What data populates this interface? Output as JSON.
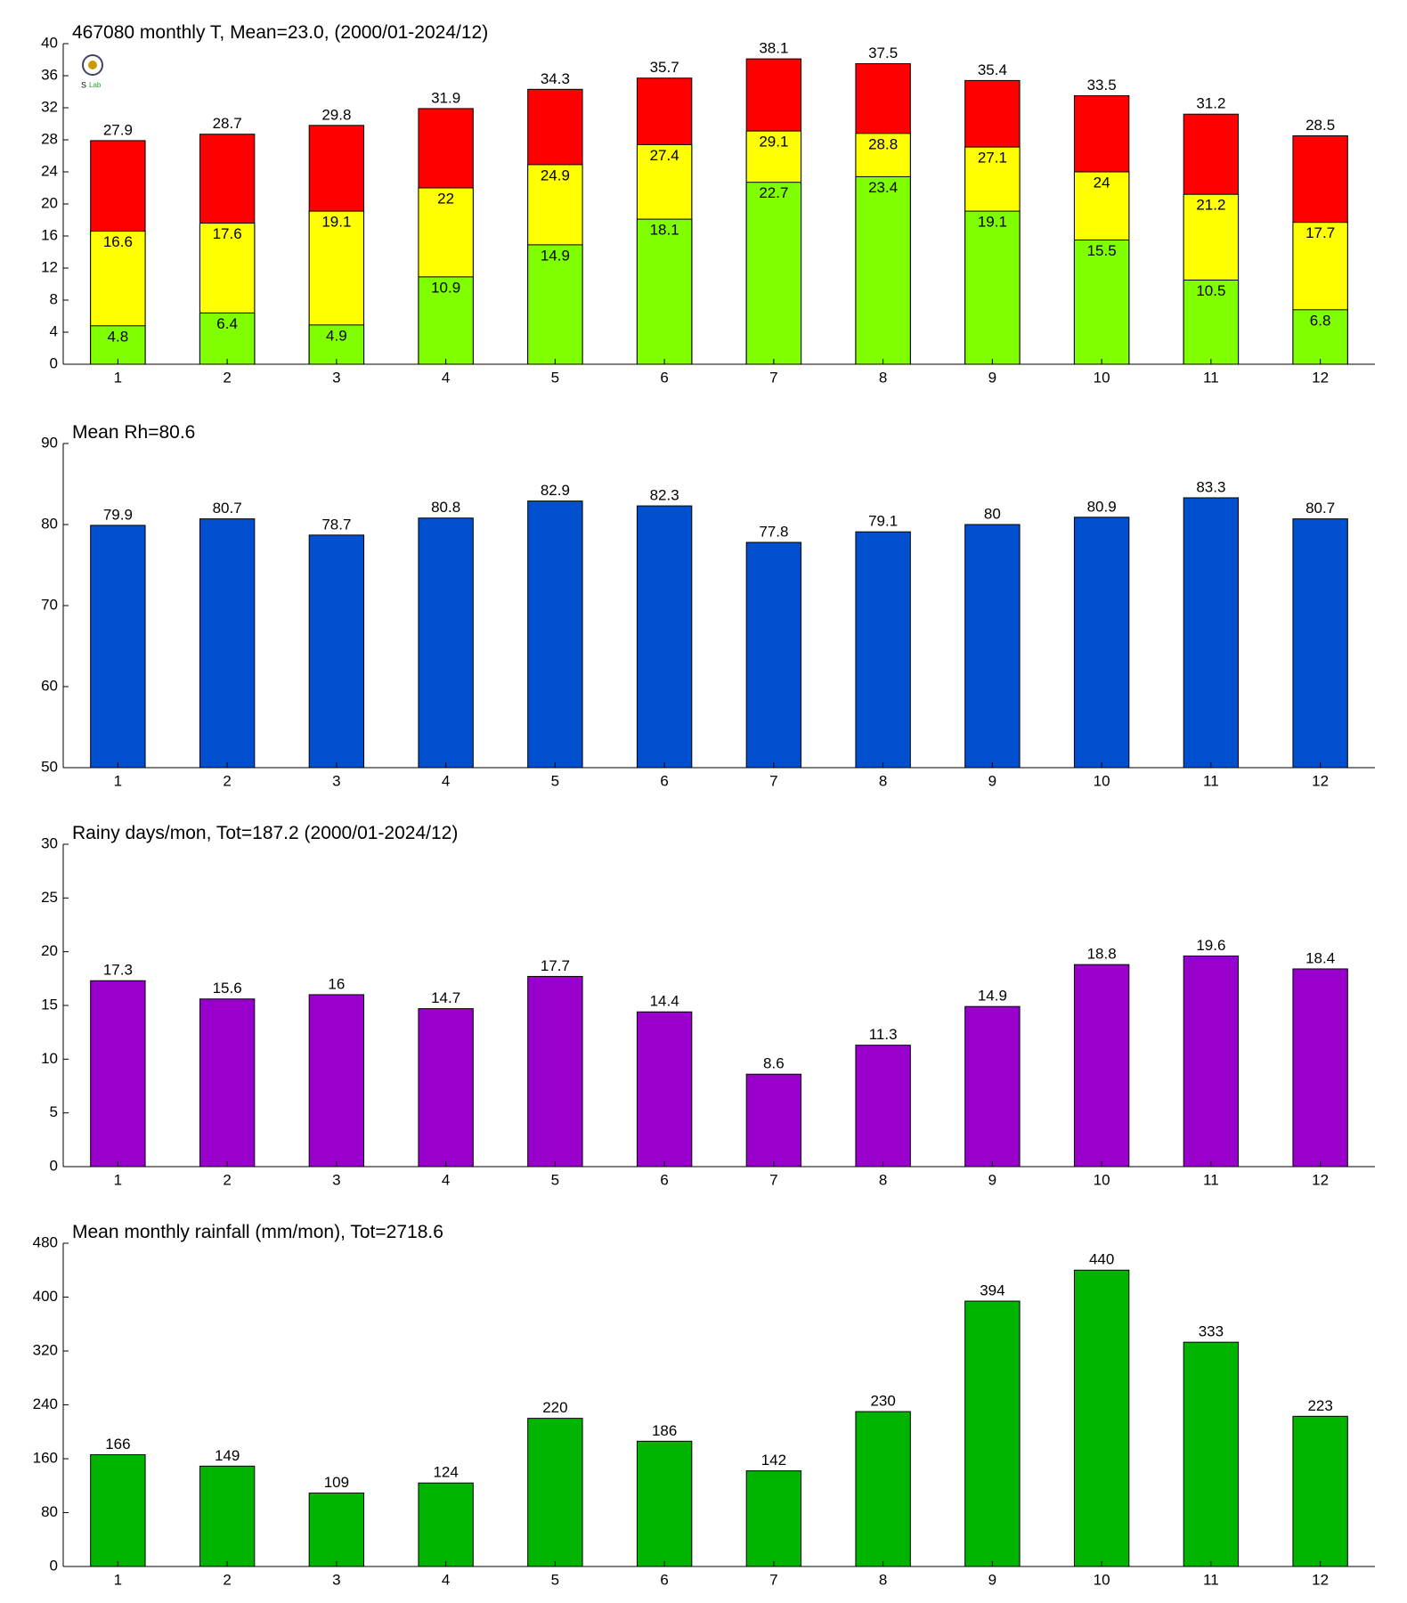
{
  "chart_data": [
    {
      "type": "bar",
      "title": "467080 monthly T, Mean=23.0, (2000/01-2024/12)",
      "categories": [
        "1",
        "2",
        "3",
        "4",
        "5",
        "6",
        "7",
        "8",
        "9",
        "10",
        "11",
        "12"
      ],
      "series": [
        {
          "color": "#ff0000",
          "values": [
            27.9,
            28.7,
            29.8,
            31.9,
            34.3,
            35.7,
            38.1,
            37.5,
            35.4,
            33.5,
            31.2,
            28.5
          ]
        },
        {
          "color": "#ffff00",
          "values": [
            16.6,
            17.6,
            19.1,
            22,
            24.9,
            27.4,
            29.1,
            28.8,
            27.1,
            24,
            21.2,
            17.7
          ]
        },
        {
          "color": "#80ff00",
          "values": [
            4.8,
            6.4,
            4.9,
            10.9,
            14.9,
            18.1,
            22.7,
            23.4,
            19.1,
            15.5,
            10.5,
            6.8
          ]
        }
      ],
      "ylim": [
        0,
        40
      ],
      "yticks": [
        0,
        4,
        8,
        12,
        16,
        20,
        24,
        28,
        32,
        36,
        40
      ]
    },
    {
      "type": "bar",
      "title": "Mean Rh=80.6",
      "categories": [
        "1",
        "2",
        "3",
        "4",
        "5",
        "6",
        "7",
        "8",
        "9",
        "10",
        "11",
        "12"
      ],
      "series": [
        {
          "color": "#004fcf",
          "values": [
            79.9,
            80.7,
            78.7,
            80.8,
            82.9,
            82.3,
            77.8,
            79.1,
            80,
            80.9,
            83.3,
            80.7
          ]
        }
      ],
      "ylim": [
        50,
        90
      ],
      "yticks": [
        50,
        60,
        70,
        80,
        90
      ]
    },
    {
      "type": "bar",
      "title": "Rainy days/mon, Tot=187.2 (2000/01-2024/12)",
      "categories": [
        "1",
        "2",
        "3",
        "4",
        "5",
        "6",
        "7",
        "8",
        "9",
        "10",
        "11",
        "12"
      ],
      "series": [
        {
          "color": "#9900cc",
          "values": [
            17.3,
            15.6,
            16,
            14.7,
            17.7,
            14.4,
            8.6,
            11.3,
            14.9,
            18.8,
            19.6,
            18.4
          ]
        }
      ],
      "ylim": [
        0,
        30
      ],
      "yticks": [
        0,
        5,
        10,
        15,
        20,
        25,
        30
      ]
    },
    {
      "type": "bar",
      "title": "Mean monthly rainfall (mm/mon), Tot=2718.6",
      "categories": [
        "1",
        "2",
        "3",
        "4",
        "5",
        "6",
        "7",
        "8",
        "9",
        "10",
        "11",
        "12"
      ],
      "series": [
        {
          "color": "#00b400",
          "values": [
            166,
            149,
            109,
            124,
            220,
            186,
            142,
            230,
            394,
            440,
            333,
            223
          ]
        }
      ],
      "ylim": [
        0,
        480
      ],
      "yticks": [
        0,
        80,
        160,
        240,
        320,
        400,
        480
      ]
    }
  ]
}
